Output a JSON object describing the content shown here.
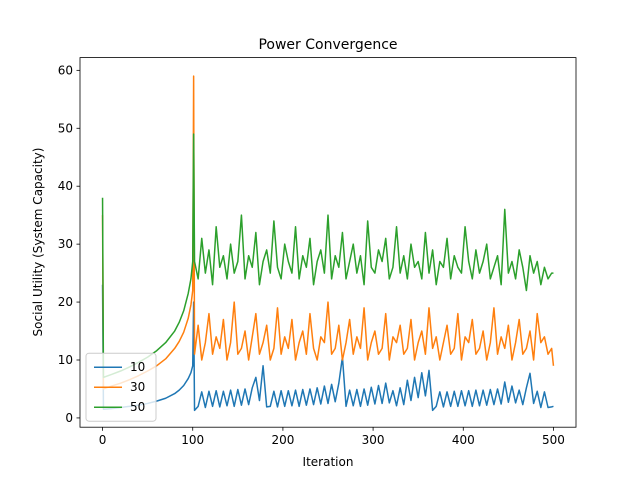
{
  "chart_data": {
    "type": "line",
    "title": "Power Convergence",
    "x_label": "Iteration",
    "y_label": "Social Utility (System Capacity)",
    "x": [
      0,
      1,
      10,
      20,
      30,
      40,
      50,
      60,
      70,
      80,
      85,
      90,
      95,
      98,
      100,
      101,
      102,
      106,
      110,
      114,
      118,
      122,
      126,
      130,
      134,
      138,
      142,
      146,
      150,
      154,
      158,
      162,
      166,
      170,
      174,
      178,
      182,
      186,
      190,
      194,
      198,
      202,
      206,
      210,
      214,
      218,
      222,
      226,
      230,
      234,
      238,
      242,
      246,
      250,
      254,
      258,
      262,
      266,
      270,
      274,
      278,
      282,
      286,
      290,
      294,
      298,
      302,
      306,
      310,
      314,
      318,
      322,
      326,
      330,
      334,
      338,
      342,
      346,
      350,
      354,
      358,
      362,
      366,
      370,
      374,
      378,
      382,
      386,
      390,
      394,
      398,
      402,
      406,
      410,
      414,
      418,
      422,
      426,
      430,
      434,
      438,
      442,
      446,
      450,
      454,
      458,
      462,
      466,
      470,
      474,
      478,
      482,
      486,
      490,
      494,
      498,
      500
    ],
    "series": [
      {
        "name": "10",
        "color": "#1f77b4",
        "values": [
          23,
          1.5,
          1.6,
          1.8,
          2.0,
          2.2,
          2.5,
          2.9,
          3.4,
          4.2,
          4.8,
          5.6,
          6.8,
          7.8,
          9,
          20,
          1.3,
          2.0,
          4.5,
          1.8,
          4.6,
          2.0,
          4.7,
          1.9,
          4.6,
          2.1,
          4.8,
          2.0,
          4.9,
          2.2,
          5.0,
          2.3,
          5.2,
          7.0,
          3.0,
          9.0,
          1.9,
          2.0,
          4.6,
          1.9,
          4.7,
          2.0,
          4.7,
          2.1,
          4.8,
          2.0,
          4.9,
          2.2,
          5.0,
          2.3,
          5.2,
          2.4,
          5.5,
          2.5,
          5.8,
          2.8,
          6.0,
          10.5,
          2.0,
          4.8,
          2.1,
          4.9,
          2.0,
          5.0,
          2.2,
          5.3,
          2.4,
          5.6,
          2.5,
          6.0,
          2.6,
          4.7,
          2.1,
          5.2,
          2.3,
          6.5,
          3.0,
          7.0,
          3.5,
          7.8,
          3.8,
          8.2,
          1.3,
          2.0,
          4.5,
          1.9,
          4.5,
          2.0,
          4.6,
          2.0,
          4.7,
          2.1,
          4.7,
          2.0,
          4.8,
          2.1,
          4.8,
          2.2,
          4.9,
          2.3,
          5.0,
          2.4,
          6.2,
          2.7,
          5.5,
          2.6,
          4.8,
          2.3,
          5.2,
          7.7,
          2.5,
          4.6,
          1.8,
          4.5,
          1.8,
          1.9,
          2.0
        ]
      },
      {
        "name": "30",
        "color": "#ff7f0e",
        "values": [
          35,
          5,
          5.5,
          6,
          6.6,
          7.3,
          8.1,
          9,
          10.2,
          12,
          13.2,
          14.8,
          17.2,
          19.5,
          22,
          59,
          11,
          16,
          10,
          13,
          18,
          11,
          14,
          12,
          17,
          10,
          13,
          20,
          11,
          12,
          15,
          10,
          14,
          18,
          11,
          13,
          16,
          10,
          12,
          19,
          11,
          14,
          12,
          17,
          10,
          13,
          15,
          11,
          18,
          12,
          10,
          14,
          13,
          20,
          11,
          12,
          16,
          10,
          13,
          17,
          11,
          14,
          12,
          19,
          10,
          13,
          15,
          11,
          12,
          18,
          10,
          14,
          13,
          16,
          11,
          12,
          17,
          10,
          13,
          15,
          11,
          19,
          12,
          14,
          10,
          13,
          16,
          11,
          12,
          18,
          10,
          14,
          13,
          17,
          11,
          12,
          15,
          10,
          13,
          19,
          11,
          14,
          12,
          16,
          10,
          13,
          17,
          11,
          12,
          15,
          10,
          18,
          13,
          14,
          11,
          12,
          9
        ]
      },
      {
        "name": "50",
        "color": "#2ca02c",
        "values": [
          38,
          7,
          7.5,
          8.1,
          8.8,
          9.6,
          10.5,
          11.6,
          13,
          15,
          16.5,
          18.5,
          21.5,
          24,
          27,
          49,
          27,
          24,
          31,
          25,
          29,
          23,
          33,
          26,
          28,
          24,
          30,
          25,
          27,
          35,
          24,
          28,
          26,
          32,
          23,
          27,
          29,
          25,
          34,
          26,
          24,
          30,
          27,
          25,
          33,
          24,
          28,
          26,
          31,
          23,
          27,
          29,
          25,
          35,
          24,
          28,
          26,
          32,
          24,
          27,
          30,
          25,
          28,
          23,
          34,
          26,
          25,
          29,
          27,
          31,
          24,
          26,
          33,
          25,
          28,
          24,
          30,
          26,
          27,
          24,
          32,
          25,
          29,
          23,
          27,
          26,
          31,
          24,
          28,
          26,
          25,
          33,
          27,
          24,
          29,
          25,
          27,
          30,
          24,
          26,
          28,
          23,
          36,
          25,
          27,
          24,
          29,
          26,
          22,
          28,
          25,
          27,
          23,
          26,
          24,
          25,
          25
        ]
      }
    ],
    "xlim": [
      -25,
      525
    ],
    "ylim": [
      -1.6,
      62.2
    ],
    "xticks": [
      0,
      100,
      200,
      300,
      400,
      500
    ],
    "yticks": [
      0,
      10,
      20,
      30,
      40,
      50,
      60
    ],
    "legend": "lower left"
  }
}
